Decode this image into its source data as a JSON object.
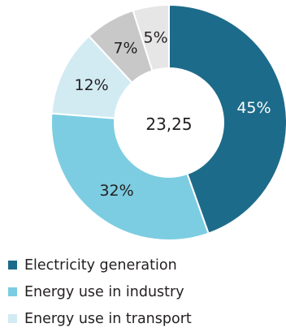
{
  "chart_data": {
    "type": "pie",
    "donut": true,
    "center_label": "23,25",
    "slices": [
      {
        "label": "Electricity generation",
        "value": 45,
        "value_label": "45%",
        "color": "#1d6b8a",
        "text_color": "#ffffff"
      },
      {
        "label": "Energy use in industry",
        "value": 32,
        "value_label": "32%",
        "color": "#7ccde1",
        "text_color": "#231f20"
      },
      {
        "label": "Energy use in transport",
        "value": 12,
        "value_label": "12%",
        "color": "#d2ebf3",
        "text_color": "#231f20"
      },
      {
        "label": "",
        "value": 7,
        "value_label": "7%",
        "color": "#c8c8c8",
        "text_color": "#231f20"
      },
      {
        "label": "",
        "value": 5,
        "value_label": "5%",
        "color": "#e6e6e6",
        "text_color": "#231f20"
      }
    ],
    "legend": {
      "position": "bottom-left",
      "entries": [
        {
          "label": "Electricity generation",
          "color": "#1d6b8a"
        },
        {
          "label": "Energy use in industry",
          "color": "#7ccde1"
        },
        {
          "label": "Energy use in transport",
          "color": "#d2ebf3"
        }
      ]
    }
  }
}
